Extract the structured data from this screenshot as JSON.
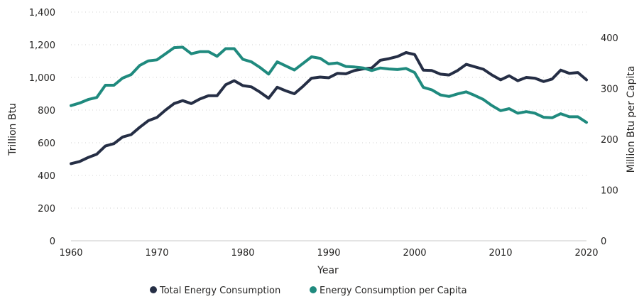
{
  "chart_data": {
    "type": "line",
    "xlabel": "Year",
    "ylabel_left": "Trillion Btu",
    "ylabel_right": "Million Btu per Capita",
    "x": [
      1960,
      1961,
      1962,
      1963,
      1964,
      1965,
      1966,
      1967,
      1968,
      1969,
      1970,
      1971,
      1972,
      1973,
      1974,
      1975,
      1976,
      1977,
      1978,
      1979,
      1980,
      1981,
      1982,
      1983,
      1984,
      1985,
      1986,
      1987,
      1988,
      1989,
      1990,
      1991,
      1992,
      1993,
      1994,
      1995,
      1996,
      1997,
      1998,
      1999,
      2000,
      2001,
      2002,
      2003,
      2004,
      2005,
      2006,
      2007,
      2008,
      2009,
      2010,
      2011,
      2012,
      2013,
      2014,
      2015,
      2016,
      2017,
      2018,
      2019,
      2020
    ],
    "x_ticks": [
      1960,
      1970,
      1980,
      1990,
      2000,
      2010,
      2020
    ],
    "xlim": [
      1960,
      2020
    ],
    "ylim_left": [
      0,
      1400
    ],
    "yticks_left": [
      0,
      200,
      400,
      600,
      800,
      1000,
      1200,
      1400
    ],
    "yticks_left_labels": [
      "0",
      "200",
      "400",
      "600",
      "800",
      "1,000",
      "1,200",
      "1,400"
    ],
    "ylim_right": [
      0,
      450
    ],
    "yticks_right": [
      0,
      100,
      200,
      300,
      400
    ],
    "yticks_right_labels": [
      "0",
      "100",
      "200",
      "300",
      "400"
    ],
    "grid": "horizontal",
    "legend_position": "bottom-center",
    "series": [
      {
        "name": "Total Energy Consumption",
        "axis": "left",
        "color": "#252e45",
        "values": [
          472,
          485,
          510,
          530,
          580,
          595,
          635,
          650,
          695,
          735,
          755,
          800,
          840,
          858,
          840,
          868,
          888,
          888,
          955,
          980,
          950,
          942,
          910,
          872,
          940,
          918,
          900,
          945,
          995,
          1002,
          998,
          1025,
          1022,
          1042,
          1052,
          1058,
          1105,
          1115,
          1128,
          1152,
          1140,
          1045,
          1042,
          1020,
          1015,
          1042,
          1080,
          1065,
          1050,
          1015,
          985,
          1010,
          980,
          1000,
          995,
          975,
          990,
          1045,
          1025,
          1030,
          985
        ]
      },
      {
        "name": "Energy Consumption per Capita",
        "axis": "right",
        "color": "#1f8a7e",
        "values": [
          266,
          271,
          278,
          282,
          306,
          306,
          320,
          327,
          345,
          354,
          356,
          368,
          380,
          381,
          368,
          372,
          372,
          363,
          378,
          378,
          357,
          352,
          341,
          328,
          352,
          344,
          336,
          349,
          362,
          359,
          348,
          350,
          343,
          342,
          340,
          335,
          340,
          338,
          337,
          339,
          331,
          302,
          297,
          287,
          284,
          289,
          293,
          286,
          278,
          266,
          256,
          260,
          251,
          254,
          251,
          243,
          242,
          250,
          244,
          244,
          233
        ]
      }
    ]
  }
}
